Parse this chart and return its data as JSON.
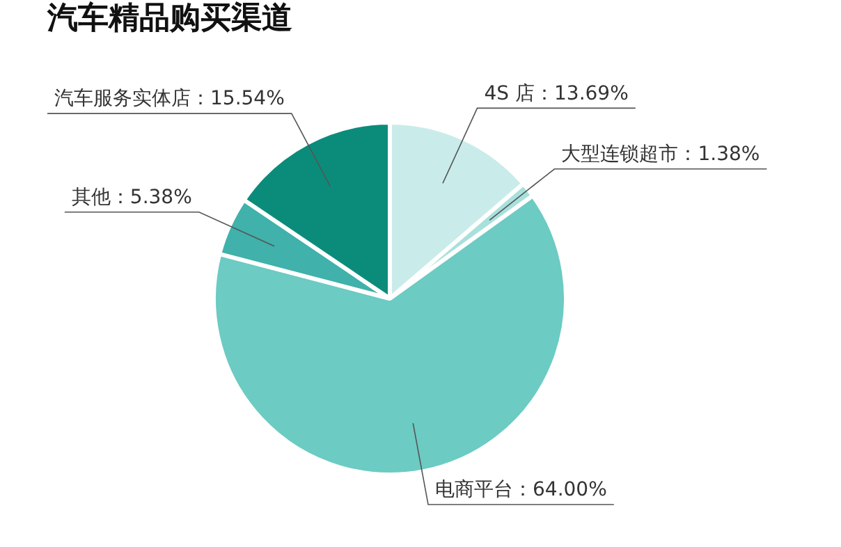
{
  "chart_data": {
    "type": "pie",
    "title": "汽车精品购买渠道",
    "categories": [
      "4S 店",
      "大型连锁超市",
      "电商平台",
      "其他",
      "汽车服务实体店"
    ],
    "values": [
      13.69,
      1.38,
      64.0,
      5.38,
      15.54
    ],
    "value_labels": [
      "13.69%",
      "1.38%",
      "64.00%",
      "5.38%",
      "15.54%"
    ],
    "colors": [
      "#c9ecea",
      "#a8e0dc",
      "#6ccbc3",
      "#40b1ab",
      "#0b8c7b"
    ],
    "legend": false
  }
}
